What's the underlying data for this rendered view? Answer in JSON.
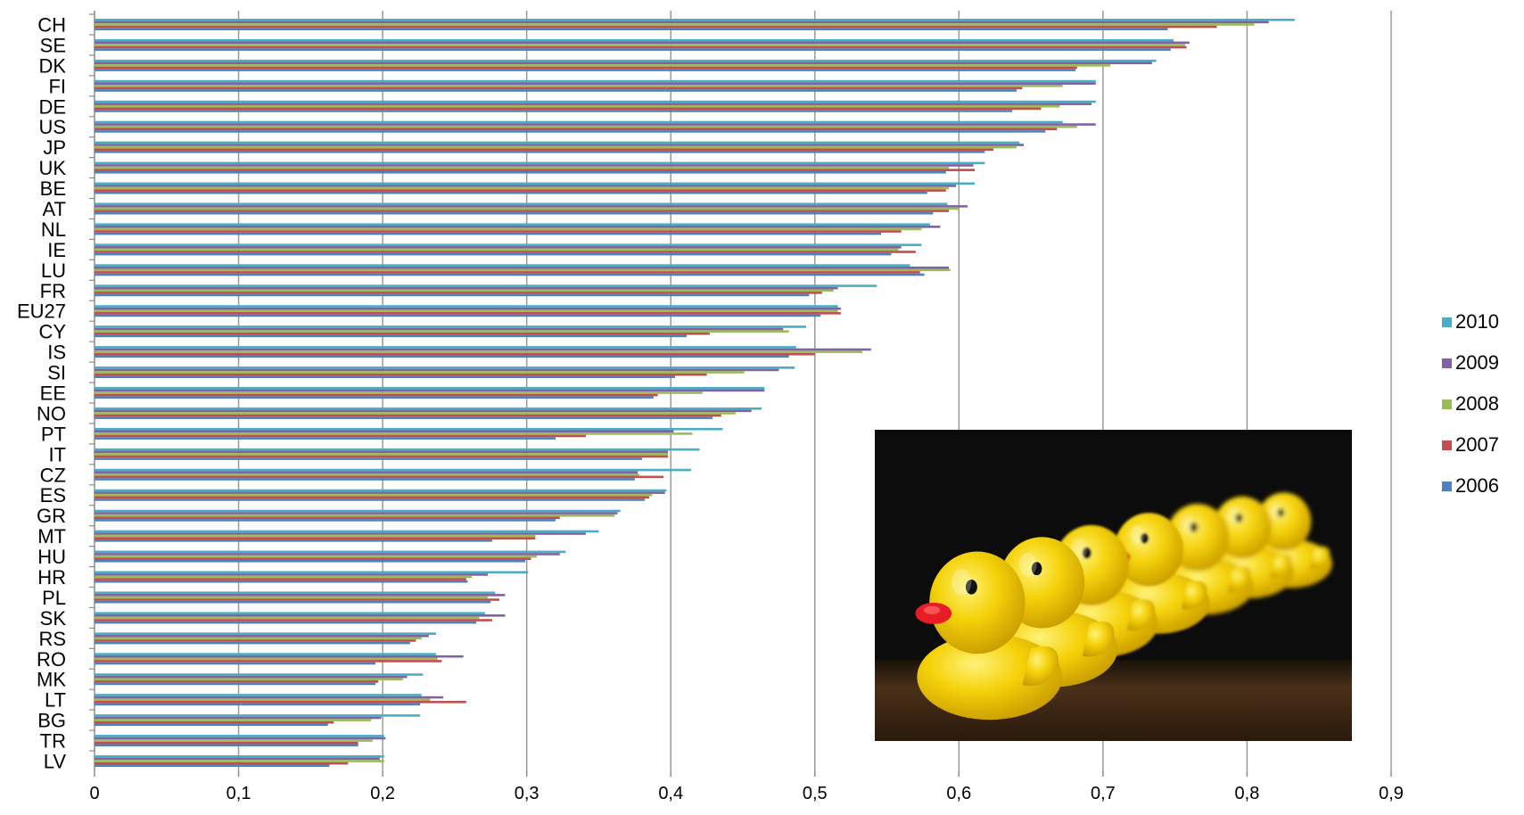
{
  "chart_data": {
    "type": "bar",
    "orientation": "horizontal",
    "categories": [
      "CH",
      "SE",
      "DK",
      "FI",
      "DE",
      "US",
      "JP",
      "UK",
      "BE",
      "AT",
      "NL",
      "IE",
      "LU",
      "FR",
      "EU27",
      "CY",
      "IS",
      "SI",
      "EE",
      "NO",
      "PT",
      "IT",
      "CZ",
      "ES",
      "GR",
      "MT",
      "HU",
      "HR",
      "PL",
      "SK",
      "RS",
      "RO",
      "MK",
      "LT",
      "BG",
      "TR",
      "LV"
    ],
    "series": [
      {
        "name": "2010",
        "color": "#4bacc6",
        "values": [
          0.833,
          0.749,
          0.737,
          0.695,
          0.695,
          0.672,
          0.642,
          0.618,
          0.611,
          0.592,
          0.58,
          0.574,
          0.566,
          0.543,
          0.516,
          0.494,
          0.487,
          0.486,
          0.465,
          0.463,
          0.436,
          0.42,
          0.414,
          0.397,
          0.365,
          0.35,
          0.327,
          0.301,
          0.278,
          0.271,
          0.237,
          0.237,
          0.228,
          0.227,
          0.226,
          0.201,
          0.201
        ]
      },
      {
        "name": "2009",
        "color": "#8064a2",
        "values": [
          0.815,
          0.76,
          0.734,
          0.695,
          0.692,
          0.695,
          0.645,
          0.61,
          0.598,
          0.606,
          0.587,
          0.56,
          0.593,
          0.516,
          0.518,
          0.478,
          0.539,
          0.475,
          0.465,
          0.456,
          0.402,
          0.398,
          0.377,
          0.396,
          0.363,
          0.341,
          0.323,
          0.273,
          0.285,
          0.285,
          0.232,
          0.256,
          0.217,
          0.242,
          0.199,
          0.202,
          0.198
        ]
      },
      {
        "name": "2008",
        "color": "#9bbb59",
        "values": [
          0.805,
          0.757,
          0.705,
          0.672,
          0.67,
          0.682,
          0.64,
          0.593,
          0.593,
          0.6,
          0.574,
          0.558,
          0.594,
          0.513,
          0.516,
          0.482,
          0.533,
          0.451,
          0.422,
          0.445,
          0.415,
          0.398,
          0.378,
          0.387,
          0.361,
          0.306,
          0.307,
          0.262,
          0.273,
          0.267,
          0.227,
          0.238,
          0.214,
          0.233,
          0.192,
          0.193,
          0.201
        ]
      },
      {
        "name": "2007",
        "color": "#c0504d",
        "values": [
          0.779,
          0.758,
          0.682,
          0.644,
          0.657,
          0.668,
          0.624,
          0.611,
          0.591,
          0.593,
          0.56,
          0.57,
          0.573,
          0.505,
          0.518,
          0.427,
          0.5,
          0.425,
          0.391,
          0.435,
          0.341,
          0.398,
          0.395,
          0.385,
          0.323,
          0.306,
          0.303,
          0.258,
          0.281,
          0.276,
          0.223,
          0.241,
          0.197,
          0.258,
          0.166,
          0.183,
          0.176
        ]
      },
      {
        "name": "2006",
        "color": "#4f81bd",
        "values": [
          0.745,
          0.747,
          0.681,
          0.64,
          0.637,
          0.66,
          0.618,
          0.591,
          0.578,
          0.582,
          0.546,
          0.553,
          0.576,
          0.496,
          0.504,
          0.411,
          0.482,
          0.403,
          0.388,
          0.429,
          0.32,
          0.38,
          0.375,
          0.382,
          0.32,
          0.276,
          0.299,
          0.259,
          0.275,
          0.265,
          0.219,
          0.195,
          0.195,
          0.226,
          0.162,
          0.183,
          0.163
        ]
      }
    ],
    "xlim": [
      0,
      0.9
    ],
    "xticks": [
      "0",
      "0,1",
      "0,2",
      "0,3",
      "0,4",
      "0,5",
      "0,6",
      "0,7",
      "0,8",
      "0,9"
    ],
    "grid": "vertical",
    "legend_placement": "right",
    "title": "",
    "xlabel": "",
    "ylabel": ""
  },
  "inset_image": {
    "description_icon": "rubber-duck-row-photo-icon",
    "colors": {
      "duck": "#f5d20a",
      "beak": "#e81c24",
      "background": "#0c0c0c",
      "floor": "#3a2614"
    }
  }
}
